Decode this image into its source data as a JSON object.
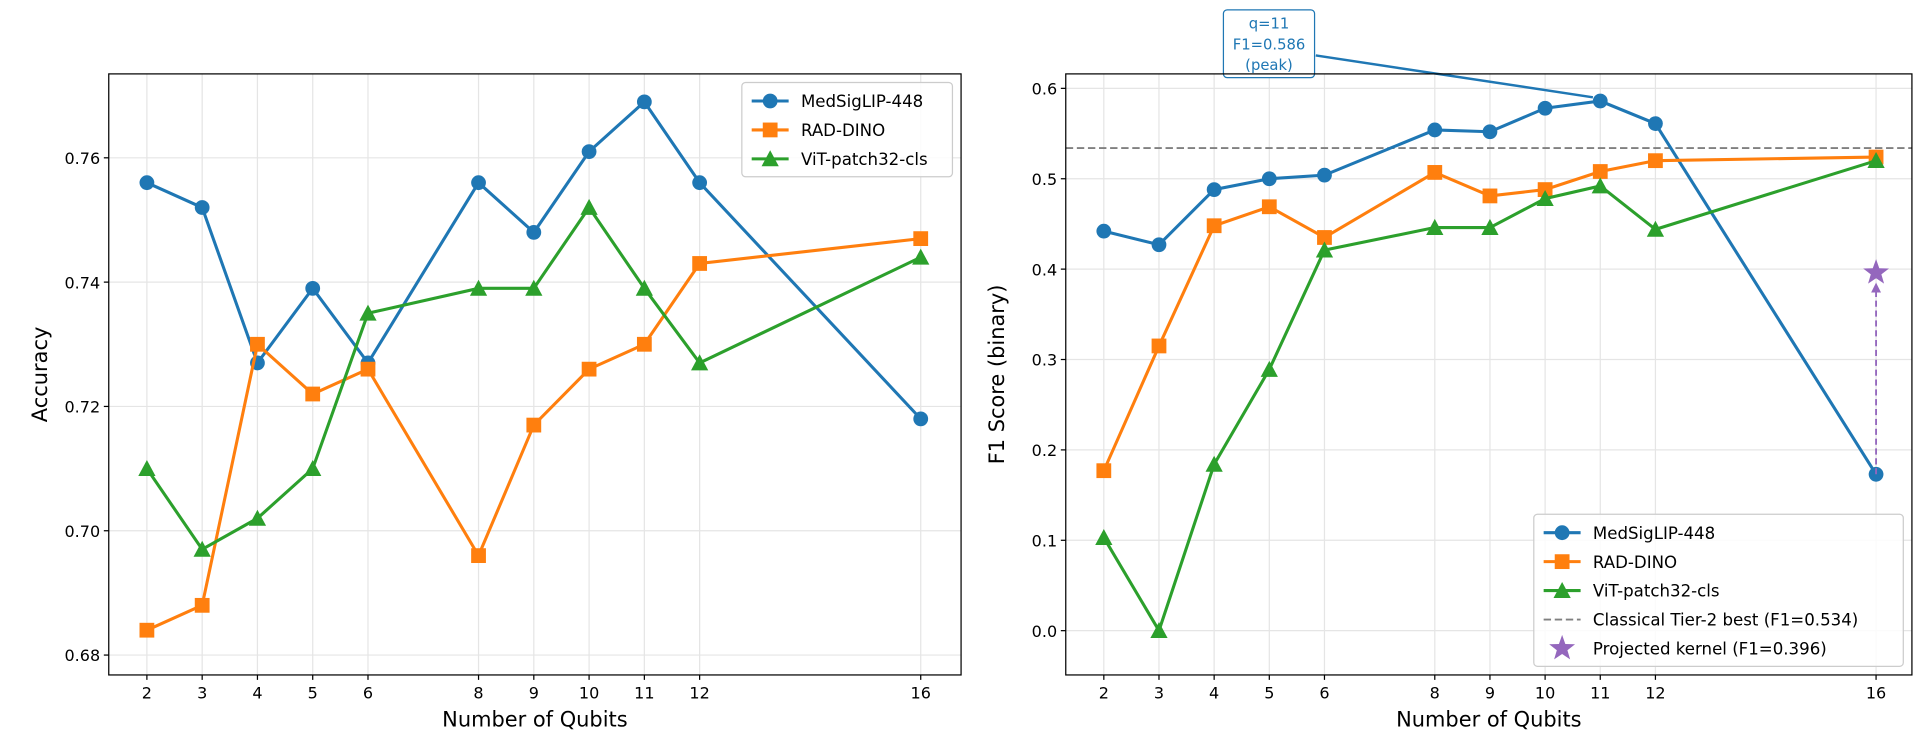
{
  "chart_data": [
    {
      "type": "line",
      "xlabel": "Number of Qubits",
      "ylabel": "Accuracy",
      "x": [
        2,
        3,
        4,
        5,
        6,
        8,
        9,
        10,
        11,
        12,
        16
      ],
      "xticks": [
        2,
        3,
        4,
        5,
        6,
        8,
        9,
        10,
        11,
        12,
        16
      ],
      "yticks": [
        "0.68",
        "0.70",
        "0.72",
        "0.74",
        "0.76"
      ],
      "xlim": [
        1.31,
        16.73
      ],
      "ylim": [
        0.6768,
        0.7735
      ],
      "grid": true,
      "legend": "top-right",
      "series": [
        {
          "name": "MedSigLIP-448",
          "color": "#1f77b4",
          "marker": "circle",
          "values": [
            0.756,
            0.752,
            0.727,
            0.739,
            0.727,
            0.756,
            0.748,
            0.761,
            0.769,
            0.756,
            0.718
          ]
        },
        {
          "name": "RAD-DINO",
          "color": "#ff7f0e",
          "marker": "square",
          "values": [
            0.684,
            0.688,
            0.73,
            0.722,
            0.726,
            0.696,
            0.717,
            0.726,
            0.73,
            0.743,
            0.747
          ]
        },
        {
          "name": "ViT-patch32-cls",
          "color": "#2ca02c",
          "marker": "triangle",
          "values": [
            0.71,
            0.697,
            0.702,
            0.71,
            0.735,
            0.739,
            0.739,
            0.752,
            0.739,
            0.727,
            0.744
          ]
        }
      ]
    },
    {
      "type": "line",
      "xlabel": "Number of Qubits",
      "ylabel": "F1 Score (binary)",
      "x": [
        2,
        3,
        4,
        5,
        6,
        8,
        9,
        10,
        11,
        12,
        16
      ],
      "xticks": [
        2,
        3,
        4,
        5,
        6,
        8,
        9,
        10,
        11,
        12,
        16
      ],
      "yticks": [
        "0.0",
        "0.1",
        "0.2",
        "0.3",
        "0.4",
        "0.5",
        "0.6"
      ],
      "xlim": [
        1.31,
        16.65
      ],
      "ylim": [
        -0.049,
        0.616
      ],
      "grid": true,
      "legend": "bottom-right",
      "series": [
        {
          "name": "MedSigLIP-448",
          "color": "#1f77b4",
          "marker": "circle",
          "values": [
            0.442,
            0.427,
            0.488,
            0.5,
            0.504,
            0.554,
            0.552,
            0.578,
            0.586,
            0.561,
            0.173
          ]
        },
        {
          "name": "RAD-DINO",
          "color": "#ff7f0e",
          "marker": "square",
          "values": [
            0.177,
            0.315,
            0.448,
            0.469,
            0.435,
            0.507,
            0.481,
            0.488,
            0.508,
            0.52,
            0.524
          ]
        },
        {
          "name": "ViT-patch32-cls",
          "color": "#2ca02c",
          "marker": "triangle",
          "values": [
            0.103,
            0.0,
            0.184,
            0.289,
            0.421,
            0.446,
            0.446,
            0.478,
            0.492,
            0.444,
            0.52
          ]
        }
      ],
      "reference_line": {
        "name": "Classical Tier-2 best (F1=0.534)",
        "y": 0.534,
        "color": "#808080",
        "style": "dashed"
      },
      "projected_point": {
        "name": "Projected kernel (F1=0.396)",
        "x": 16,
        "y": 0.396,
        "from_y": 0.173,
        "color": "#9467bd",
        "marker": "star"
      },
      "annotation": {
        "lines": [
          "q=11",
          "F1=0.586",
          "(peak)"
        ],
        "target_x": 11,
        "target_y": 0.586,
        "color": "#1f77b4"
      }
    }
  ]
}
